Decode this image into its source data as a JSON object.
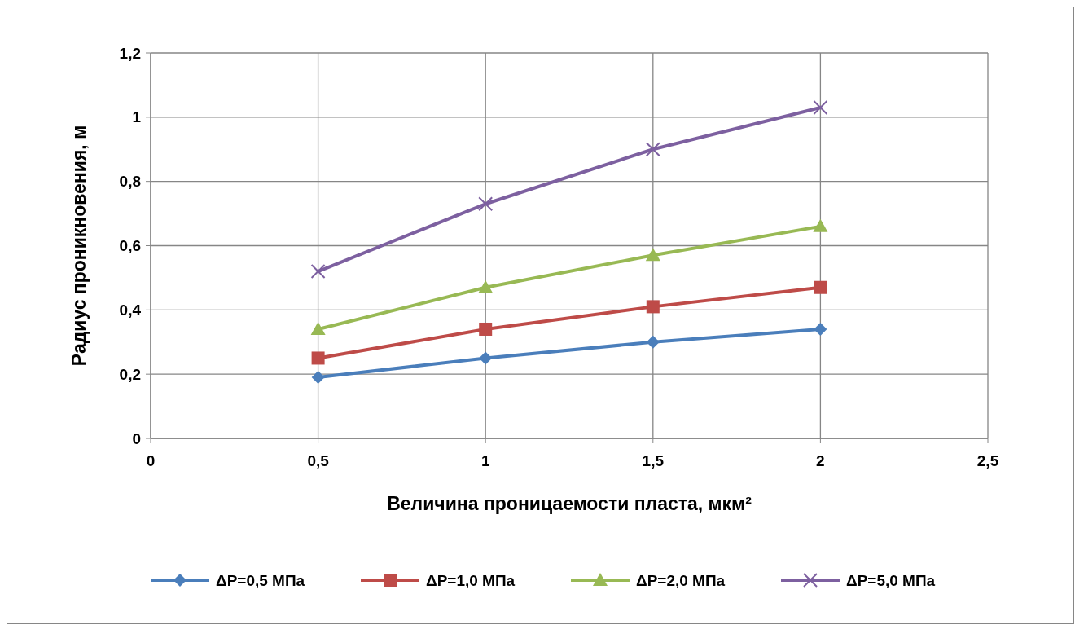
{
  "chart_data": {
    "type": "line",
    "xlabel": "Величина проницаемости пласта, мкм²",
    "ylabel": "Радиус проникновения, м",
    "x": [
      0.5,
      1,
      1.5,
      2
    ],
    "series": [
      {
        "name": "ΔP=0,5 МПа",
        "color": "#4a7ebb",
        "marker": "diamond",
        "values": [
          0.19,
          0.25,
          0.3,
          0.34
        ]
      },
      {
        "name": "ΔP=1,0 МПа",
        "color": "#be4b48",
        "marker": "square",
        "values": [
          0.25,
          0.34,
          0.41,
          0.47
        ]
      },
      {
        "name": "ΔP=2,0 МПа",
        "color": "#98b954",
        "marker": "triangle",
        "values": [
          0.34,
          0.47,
          0.57,
          0.66
        ]
      },
      {
        "name": "ΔP=5,0 МПа",
        "color": "#7d60a0",
        "marker": "cross",
        "values": [
          0.52,
          0.73,
          0.9,
          1.03
        ]
      }
    ],
    "xlim": [
      0,
      2.5
    ],
    "xticks": [
      0,
      {
        "value": 0.5,
        "label": "0,5"
      },
      1,
      {
        "value": 1.5,
        "label": "1,5"
      },
      2,
      {
        "value": 2.5,
        "label": "2,5"
      }
    ],
    "ylim": [
      0,
      1.2
    ],
    "yticks": [
      0,
      {
        "value": 0.2,
        "label": "0,2"
      },
      {
        "value": 0.4,
        "label": "0,4"
      },
      {
        "value": 0.6,
        "label": "0,6"
      },
      {
        "value": 0.8,
        "label": "0,8"
      },
      1,
      {
        "value": 1.2,
        "label": "1,2"
      }
    ],
    "grid": true,
    "legend": "bottom",
    "line_style": "solid"
  }
}
